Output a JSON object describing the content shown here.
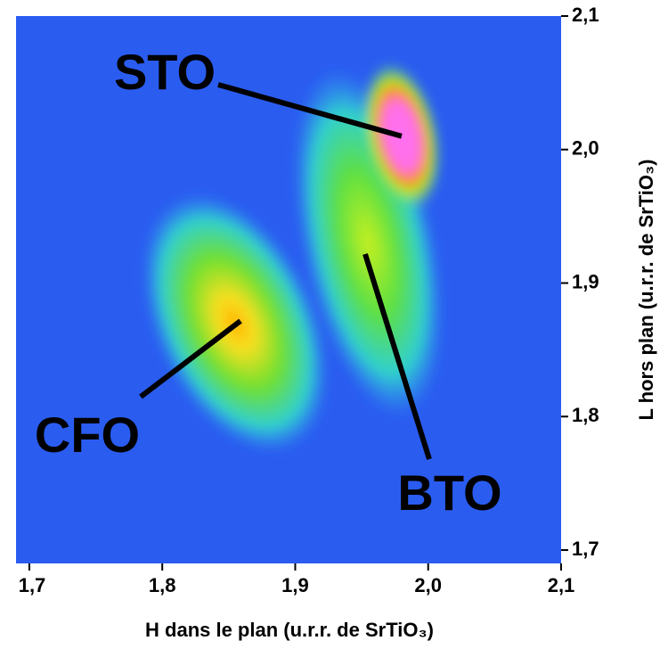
{
  "chart_data": {
    "type": "heatmap",
    "xlabel": "H dans le plan (u.r.r. de SrTiO₃)",
    "ylabel": "L hors plan  (u.r.r. de SrTiO₃)",
    "xlim": [
      1.69,
      2.1
    ],
    "ylim": [
      1.69,
      2.1
    ],
    "xticks": [
      {
        "value": 1.7,
        "label": "1,7"
      },
      {
        "value": 1.8,
        "label": "1,8"
      },
      {
        "value": 1.9,
        "label": "1,9"
      },
      {
        "value": 2.0,
        "label": "2,0"
      },
      {
        "value": 2.1,
        "label": "2,1"
      }
    ],
    "yticks": [
      {
        "value": 1.7,
        "label": "1,7"
      },
      {
        "value": 1.8,
        "label": "1,8"
      },
      {
        "value": 1.9,
        "label": "1,9"
      },
      {
        "value": 2.0,
        "label": "2,0"
      },
      {
        "value": 2.1,
        "label": "2,1"
      }
    ],
    "peaks": [
      {
        "name": "STO",
        "x": 1.98,
        "y": 2.01
      },
      {
        "name": "BTO",
        "x": 1.955,
        "y": 1.93
      },
      {
        "name": "CFO",
        "x": 1.855,
        "y": 1.87
      }
    ]
  }
}
